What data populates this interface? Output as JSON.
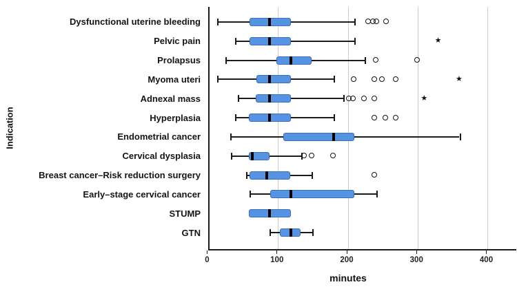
{
  "chart_data": {
    "type": "boxplot",
    "orientation": "horizontal",
    "title": "",
    "xlabel": "minutes",
    "ylabel": "Indication",
    "x_ticks": [
      0,
      100,
      200,
      300,
      400
    ],
    "xlim": [
      0,
      440
    ],
    "grid": {
      "vertical_lines_at": [
        100,
        200,
        300,
        400
      ],
      "color": "#cccccc"
    },
    "legend": "none",
    "colors": {
      "box_fill": "#5694e3",
      "box_border": "#3a6cc0",
      "median": "#000000",
      "whisker": "#1a1a1a",
      "axis": "#1a1a1a",
      "label_text": "#141414"
    },
    "markers": {
      "outlier_glyph": "circle",
      "extreme_glyph": "★"
    },
    "series": [
      {
        "label": "Dysfunctional uterine bleeding",
        "low": 13,
        "q1": 59,
        "median": 88,
        "q3": 119,
        "high": 209,
        "outliers": [
          230,
          237,
          241,
          255
        ],
        "extremes": []
      },
      {
        "label": "Pelvic pain",
        "low": 39,
        "q1": 59,
        "median": 88,
        "q3": 119,
        "high": 209,
        "outliers": [],
        "extremes": [
          330
        ]
      },
      {
        "label": "Prolapsus",
        "low": 25,
        "q1": 98,
        "median": 119,
        "q3": 148,
        "high": 224,
        "outliers": [
          240,
          300
        ],
        "extremes": []
      },
      {
        "label": "Myoma uteri",
        "low": 13,
        "q1": 69,
        "median": 88,
        "q3": 119,
        "high": 180,
        "outliers": [
          209,
          239,
          249,
          269
        ],
        "extremes": [
          360
        ]
      },
      {
        "label": "Adnexal mass",
        "low": 42,
        "q1": 68,
        "median": 88,
        "q3": 119,
        "high": 194,
        "outliers": [
          202,
          208,
          224,
          239
        ],
        "extremes": [
          310
        ]
      },
      {
        "label": "Hyperplasia",
        "low": 39,
        "q1": 58,
        "median": 88,
        "q3": 119,
        "high": 180,
        "outliers": [
          239,
          254,
          269
        ],
        "extremes": []
      },
      {
        "label": "Endometrial cancer",
        "low": 32,
        "q1": 108,
        "median": 180,
        "q3": 209,
        "high": 360,
        "outliers": [],
        "extremes": []
      },
      {
        "label": "Cervical dysplasia",
        "low": 33,
        "q1": 58,
        "median": 63,
        "q3": 88,
        "high": 133,
        "outliers": [
          138,
          149,
          179
        ],
        "extremes": []
      },
      {
        "label": "Breast cancer–Risk reduction surgery",
        "low": 54,
        "q1": 59,
        "median": 84,
        "q3": 118,
        "high": 148,
        "outliers": [
          239
        ],
        "extremes": []
      },
      {
        "label": "Early–stage cervical cancer",
        "low": 59,
        "q1": 89,
        "median": 119,
        "q3": 209,
        "high": 241,
        "outliers": [],
        "extremes": []
      },
      {
        "label": "STUMP",
        "low": 58,
        "q1": 58,
        "median": 88,
        "q3": 119,
        "high": 119,
        "outliers": [],
        "extremes": []
      },
      {
        "label": "GTN",
        "low": 88,
        "q1": 103,
        "median": 119,
        "q3": 132,
        "high": 149,
        "outliers": [],
        "extremes": []
      }
    ]
  }
}
